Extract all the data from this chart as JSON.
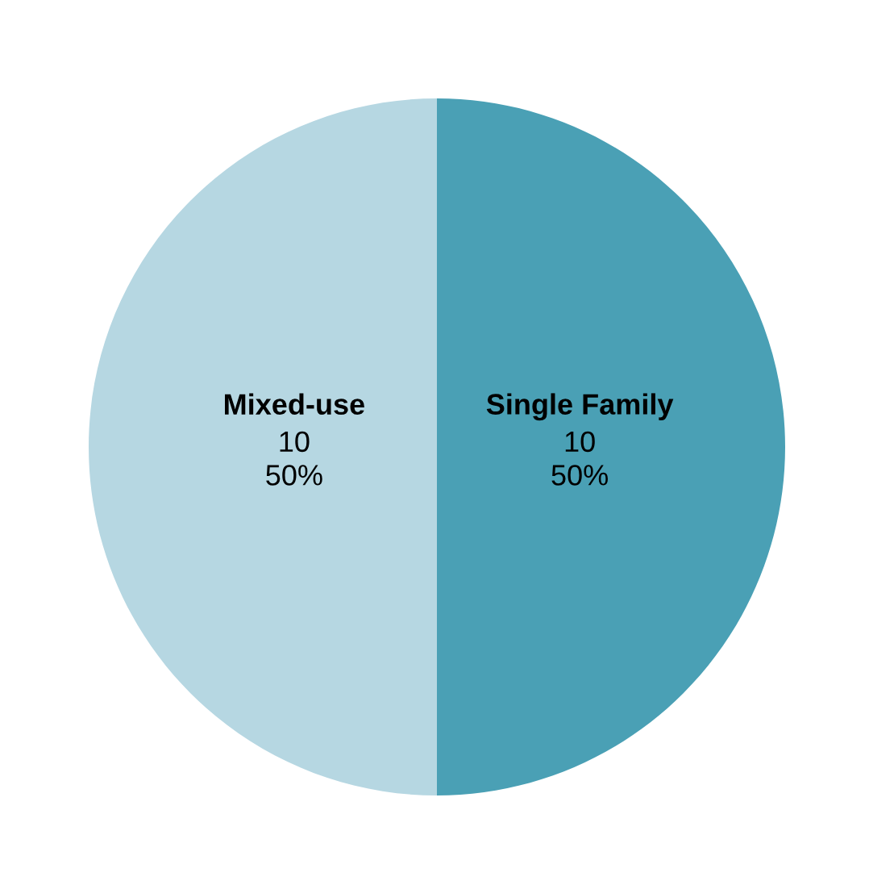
{
  "chart_data": {
    "type": "pie",
    "categories": [
      "Single Family",
      "Mixed-use"
    ],
    "values": [
      10,
      10
    ],
    "colors": [
      "#4aa0b5",
      "#b6d7e2"
    ],
    "value_labels": [
      "10\n50%",
      "10\n50%"
    ]
  }
}
